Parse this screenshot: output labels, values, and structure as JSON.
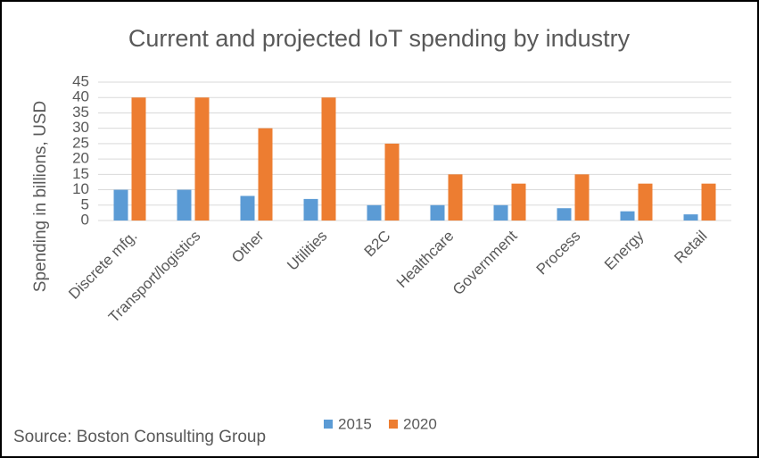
{
  "chart_data": {
    "type": "bar",
    "title": "Current and projected IoT spending by industry",
    "y_label": "Spending in billions, USD",
    "source": "Source: Boston Consulting Group",
    "categories": [
      "Discrete mfg.",
      "Transport/logistics",
      "Other",
      "Utilities",
      "B2C",
      "Healthcare",
      "Government",
      "Process",
      "Energy",
      "Retail"
    ],
    "series": [
      {
        "name": "2015",
        "color": "#5b9bd5",
        "values": [
          10,
          10,
          8,
          7,
          5,
          5,
          5,
          4,
          3,
          2
        ]
      },
      {
        "name": "2020",
        "color": "#ed7d31",
        "values": [
          40,
          40,
          30,
          40,
          25,
          15,
          12,
          15,
          12,
          12
        ]
      }
    ],
    "ylim": [
      0,
      45
    ],
    "yticks": [
      0,
      5,
      10,
      15,
      20,
      25,
      30,
      35,
      40,
      45
    ],
    "grid": true,
    "legend": "bottom"
  }
}
